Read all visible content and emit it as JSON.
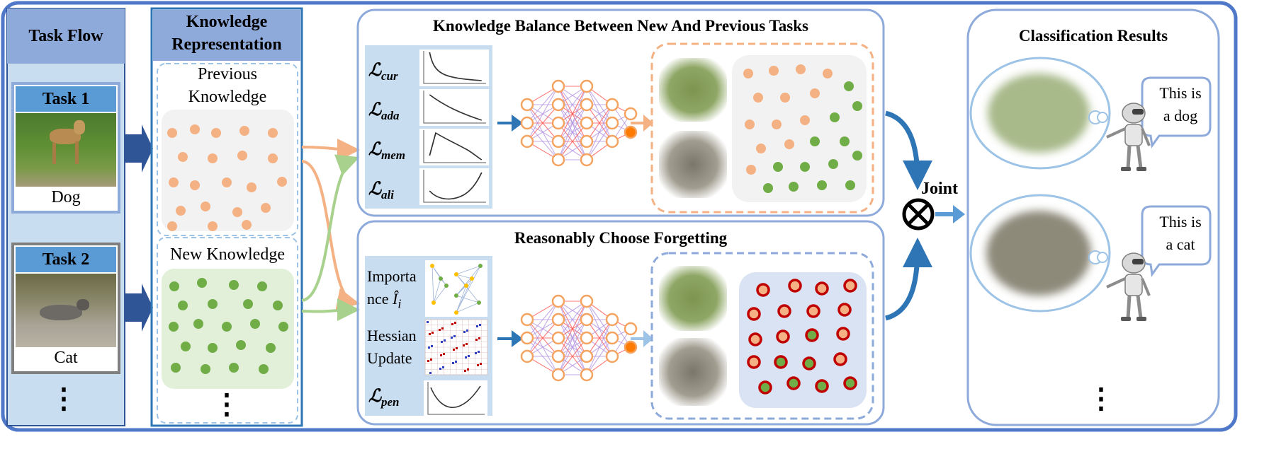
{
  "task_flow": {
    "title": "Task Flow",
    "tasks": [
      {
        "title": "Task 1",
        "caption": "Dog"
      },
      {
        "title": "Task 2",
        "caption": "Cat"
      }
    ],
    "more": "⋮"
  },
  "knowledge_representation": {
    "title_line1": "Knowledge",
    "title_line2": "Representation",
    "previous_line1": "Previous",
    "previous_line2": "Knowledge",
    "new_label": "New Knowledge",
    "more": "⋮"
  },
  "balance_panel": {
    "title": "Knowledge Balance Between New And Previous Tasks",
    "loss_script": "ℒ",
    "losses": [
      {
        "sub": "cur",
        "curve": "decay"
      },
      {
        "sub": "ada",
        "curve": "linear-decay"
      },
      {
        "sub": "mem",
        "curve": "peak-decay"
      },
      {
        "sub": "ali",
        "curve": "rise"
      }
    ]
  },
  "forgetting_panel": {
    "title": "Reasonably Choose Forgetting",
    "importance_line1": "Importa",
    "importance_line2": "nce ",
    "importance_symbol": "Î",
    "importance_sub": "i",
    "hessian_line1": "Hessian",
    "hessian_line2": "Update",
    "pen_script": "ℒ",
    "pen_sub": "pen"
  },
  "joint": {
    "label": "Joint",
    "operator_icon": "circled-times-icon"
  },
  "classification": {
    "title": "Classification Results",
    "results": [
      {
        "speech_line1": "This is",
        "speech_line2": "a dog"
      },
      {
        "speech_line1": "This is",
        "speech_line2": "a cat"
      }
    ],
    "more": "⋮"
  },
  "colors": {
    "frame_blue": "#4f79c8",
    "task_flow_bg": "#c9ddf1",
    "task_header": "#5b9bd5",
    "kr_header": "#8eaadb",
    "orange_dot": "#f4b183",
    "green_dot": "#70ad47",
    "red_ring": "#c00000",
    "arrow_dark": "#2e75b6",
    "arrow_orange": "#f4b183",
    "arrow_green": "#a9d18e"
  }
}
